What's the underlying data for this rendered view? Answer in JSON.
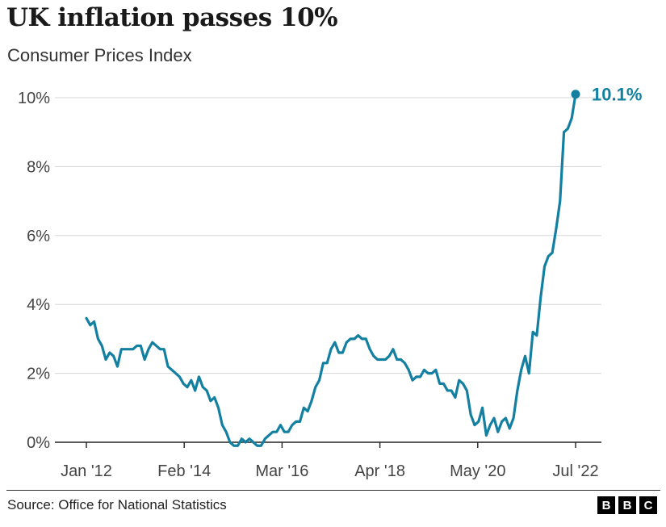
{
  "header": {
    "title": "UK inflation passes 10%",
    "subtitle": "Consumer Prices Index"
  },
  "footer": {
    "source": "Source: Office for National Statistics",
    "logo_letters": [
      "B",
      "B",
      "C"
    ]
  },
  "chart_data": {
    "type": "line",
    "title": "UK inflation passes 10%",
    "subtitle": "Consumer Prices Index",
    "xlabel": "",
    "ylabel": "",
    "ylim": [
      0,
      10
    ],
    "yticks": [
      0,
      2,
      4,
      6,
      8,
      10
    ],
    "ytick_labels": [
      "0%",
      "2%",
      "4%",
      "6%",
      "8%",
      "10%"
    ],
    "xticks": [
      "Jan '12",
      "Feb '14",
      "Mar '16",
      "Apr '18",
      "May '20",
      "Jul '22"
    ],
    "grid": "horizontal",
    "line_color": "#1380a1",
    "end_label": "10.1%",
    "series": [
      {
        "name": "",
        "start": "Jan 2012",
        "frequency": "monthly",
        "values": [
          3.6,
          3.4,
          3.5,
          3.0,
          2.8,
          2.4,
          2.6,
          2.5,
          2.2,
          2.7,
          2.7,
          2.7,
          2.7,
          2.8,
          2.8,
          2.4,
          2.7,
          2.9,
          2.8,
          2.7,
          2.7,
          2.2,
          2.1,
          2.0,
          1.9,
          1.7,
          1.6,
          1.8,
          1.5,
          1.9,
          1.6,
          1.5,
          1.2,
          1.3,
          1.0,
          0.5,
          0.3,
          0.0,
          -0.1,
          -0.1,
          0.1,
          0.0,
          0.1,
          0.0,
          -0.1,
          -0.1,
          0.1,
          0.2,
          0.3,
          0.3,
          0.5,
          0.3,
          0.3,
          0.5,
          0.6,
          0.6,
          1.0,
          0.9,
          1.2,
          1.6,
          1.8,
          2.3,
          2.3,
          2.7,
          2.9,
          2.6,
          2.6,
          2.9,
          3.0,
          3.0,
          3.1,
          3.0,
          3.0,
          2.7,
          2.5,
          2.4,
          2.4,
          2.4,
          2.5,
          2.7,
          2.4,
          2.4,
          2.3,
          2.1,
          1.8,
          1.9,
          1.9,
          2.1,
          2.0,
          2.0,
          2.1,
          1.7,
          1.7,
          1.5,
          1.5,
          1.3,
          1.8,
          1.7,
          1.5,
          0.8,
          0.5,
          0.6,
          1.0,
          0.2,
          0.5,
          0.7,
          0.3,
          0.6,
          0.7,
          0.4,
          0.7,
          1.5,
          2.1,
          2.5,
          2.0,
          3.2,
          3.1,
          4.2,
          5.1,
          5.4,
          5.5,
          6.2,
          7.0,
          9.0,
          9.1,
          9.4,
          10.1
        ]
      }
    ]
  }
}
